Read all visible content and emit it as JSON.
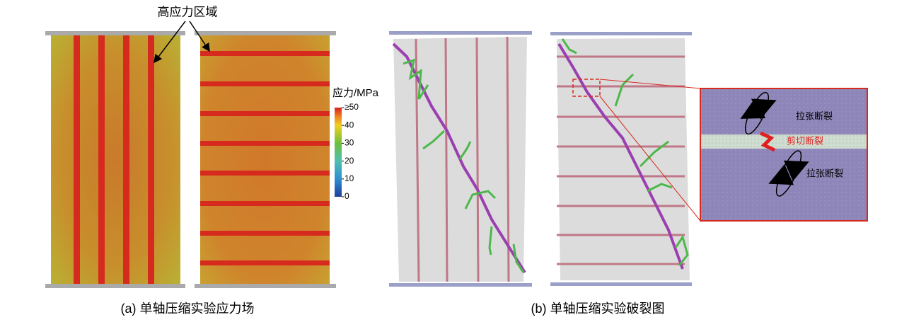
{
  "annotation": "高应力区域",
  "colorbar": {
    "title": "应力/MPa",
    "range": [
      0,
      50
    ],
    "ticks": [
      {
        "value": 50,
        "label": "≥50"
      },
      40,
      30,
      20,
      10,
      0
    ]
  },
  "zoom": {
    "tension_top": "拉张断裂",
    "shear": "剪切断裂",
    "tension_bottom": "拉张断裂"
  },
  "captions": {
    "a": "(a) 单轴压缩实验应力场",
    "b": "(b) 单轴压缩实验破裂图"
  }
}
